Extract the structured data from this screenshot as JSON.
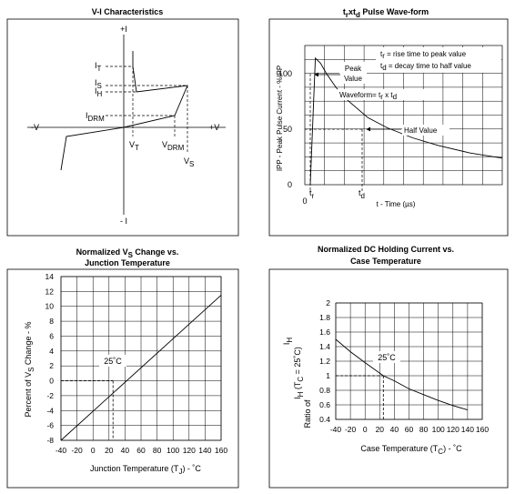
{
  "panels": {
    "vi": {
      "title": "V-I Characteristics",
      "labels": {
        "plus_i": "+I",
        "minus_i": "- I",
        "minus_v": "-V",
        "plus_v": "+V",
        "it": "I",
        "it_sub": "T",
        "is": "I",
        "is_sub": "S",
        "ih": "I",
        "ih_sub": "H",
        "idrm": "I",
        "idrm_sub": "DRM",
        "vt": "V",
        "vt_sub": "T",
        "vdrm": "V",
        "vdrm_sub": "DRM",
        "vs": "V",
        "vs_sub": "S"
      }
    },
    "pulse": {
      "title_a": "t",
      "title_a_sub": "r",
      "title_b": "xt",
      "title_b_sub": "d",
      "title_c": " Pulse Wave-form",
      "ylabel": "IPP - Peak Pulse Current - %IPP",
      "xlabel": "t - Time (µs)",
      "ticks": [
        "100",
        "50",
        "0"
      ],
      "origin": "0",
      "tr": "t",
      "tr_sub": "r",
      "td": "t",
      "td_sub": "d",
      "note_tr_a": "t",
      "note_tr_sub": "r",
      "note_tr_b": " = rise time to peak value",
      "note_td_a": "t",
      "note_td_sub": "d",
      "note_td_b": " = decay time to half value",
      "peak_value_1": "Peak",
      "peak_value_2": "Value",
      "waveform_a": "Waveform= t",
      "waveform_sub1": "r",
      "waveform_b": " x t",
      "waveform_sub2": "d",
      "half_value": "Half Value"
    },
    "vs_change": {
      "title_line1_a": "Normalized V",
      "title_line1_sub": "S",
      "title_line1_b": " Change vs.",
      "title_line2": "Junction Temperature",
      "ylabel_a": "Percent of V",
      "ylabel_sub": "S",
      "ylabel_b": " Change - %",
      "xlabel_a": "Junction Temperature (T",
      "xlabel_sub": "J",
      "xlabel_b": ") - ˚C",
      "annotation": "25˚C"
    },
    "ih_case": {
      "title_line1": "Normalized DC Holding Current vs.",
      "title_line2": "Case Temperature",
      "ylabel_a": "Ratio of",
      "ylabel_b": "I",
      "ylabel_b_sub": "H",
      "ylabel_c": " (T",
      "ylabel_c_sub": "C",
      "ylabel_d": " = 25˚C)",
      "ylabel_top": "I",
      "ylabel_top_sub": "H",
      "xlabel_a": "Case Temperature (T",
      "xlabel_sub": "C",
      "xlabel_b": ") - ˚C",
      "annotation": "25˚C"
    }
  },
  "chart_data": [
    {
      "type": "line",
      "title": "V-I Characteristics",
      "xlabel": "V",
      "ylabel": "I",
      "note": "qualitative device characteristic; no numeric scale"
    },
    {
      "type": "line",
      "title": "trxtd Pulse Wave-form",
      "xlabel": "t - Time (µs)",
      "ylabel": "IPP - Peak Pulse Current - %IPP",
      "ylim": [
        0,
        110
      ],
      "yticks": [
        0,
        50,
        100
      ],
      "series": [
        {
          "x": [
            0,
            0.08,
            0.16,
            0.25,
            0.4,
            0.6,
            0.9,
            1.2,
            1.6,
            2.0,
            2.5,
            3.0
          ],
          "y": [
            0,
            100,
            96,
            88,
            77,
            66,
            53,
            45,
            37,
            31,
            25,
            21
          ]
        }
      ],
      "grid": true
    },
    {
      "type": "line",
      "title": "Normalized VS Change vs. Junction Temperature",
      "xlabel": "Junction Temperature (TJ) - ˚C",
      "ylabel": "Percent of VS Change - %",
      "x": [
        -40,
        160
      ],
      "y": [
        -8,
        11.5
      ],
      "xlim": [
        -40,
        160
      ],
      "ylim": [
        -8,
        14
      ],
      "xticks": [
        -40,
        -20,
        0,
        20,
        40,
        60,
        80,
        100,
        120,
        140,
        160
      ],
      "yticks": [
        -8,
        -6,
        -4,
        -2,
        0,
        2,
        4,
        6,
        8,
        10,
        12,
        14
      ],
      "reference": {
        "x": 25,
        "y": 0
      },
      "grid": true
    },
    {
      "type": "line",
      "title": "Normalized DC Holding Current vs. Case Temperature",
      "xlabel": "Case Temperature (TC) - ˚C",
      "ylabel": "Ratio of IH (TC = 25˚C)",
      "x": [
        -40,
        -20,
        0,
        25,
        40,
        60,
        80,
        100,
        120,
        140
      ],
      "y": [
        1.5,
        1.33,
        1.18,
        1.0,
        0.93,
        0.82,
        0.74,
        0.66,
        0.59,
        0.53
      ],
      "xlim": [
        -40,
        160
      ],
      "ylim": [
        0.4,
        2.0
      ],
      "xticks": [
        -40,
        -20,
        0,
        20,
        40,
        60,
        80,
        100,
        120,
        140,
        160
      ],
      "yticks": [
        0.4,
        0.6,
        0.8,
        1.0,
        1.2,
        1.4,
        1.6,
        1.8,
        2.0
      ],
      "reference": {
        "x": 25,
        "y": 1.0
      },
      "grid": true
    }
  ]
}
